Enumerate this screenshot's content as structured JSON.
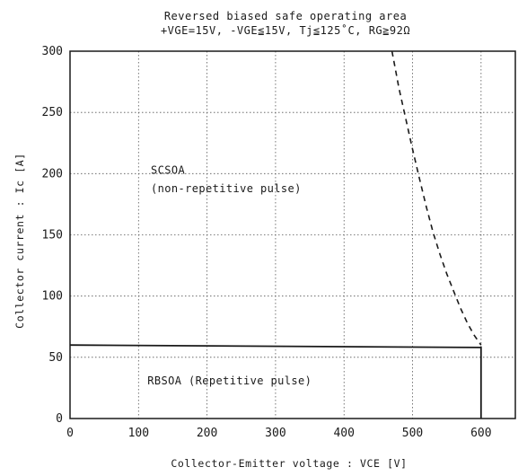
{
  "chart_data": {
    "type": "line",
    "title": "Reversed biased safe operating area",
    "subtitle": "+VGE=15V,  -VGE≦15V,  Tj≦125˚C,  RG≧92Ω",
    "xlabel": "Collector-Emitter voltage : VCE [V]",
    "ylabel": "Collector current : Ic [A]",
    "xlim": [
      0,
      650
    ],
    "ylim": [
      0,
      300
    ],
    "xticks": [
      0,
      100,
      200,
      300,
      400,
      500,
      600
    ],
    "yticks": [
      0,
      50,
      100,
      150,
      200,
      250,
      300
    ],
    "grid": true,
    "series": [
      {
        "style": "solid",
        "x": [
          0,
          600,
          600
        ],
        "y": [
          60,
          58,
          0
        ]
      },
      {
        "style": "dashed",
        "x": [
          470,
          475,
          480,
          490,
          500,
          510,
          520,
          530,
          540,
          550,
          560,
          570,
          580,
          590,
          600
        ],
        "y": [
          300,
          285,
          270,
          245,
          220,
          196,
          173,
          152,
          134,
          118,
          104,
          90,
          78,
          68,
          60
        ]
      }
    ],
    "annotations": [
      {
        "text": "SCSOA",
        "x": 118,
        "y": 200
      },
      {
        "text": "(non-repetitive pulse)",
        "x": 118,
        "y": 185
      },
      {
        "text": "RBSOA (Repetitive pulse)",
        "x": 113,
        "y": 28
      }
    ]
  }
}
